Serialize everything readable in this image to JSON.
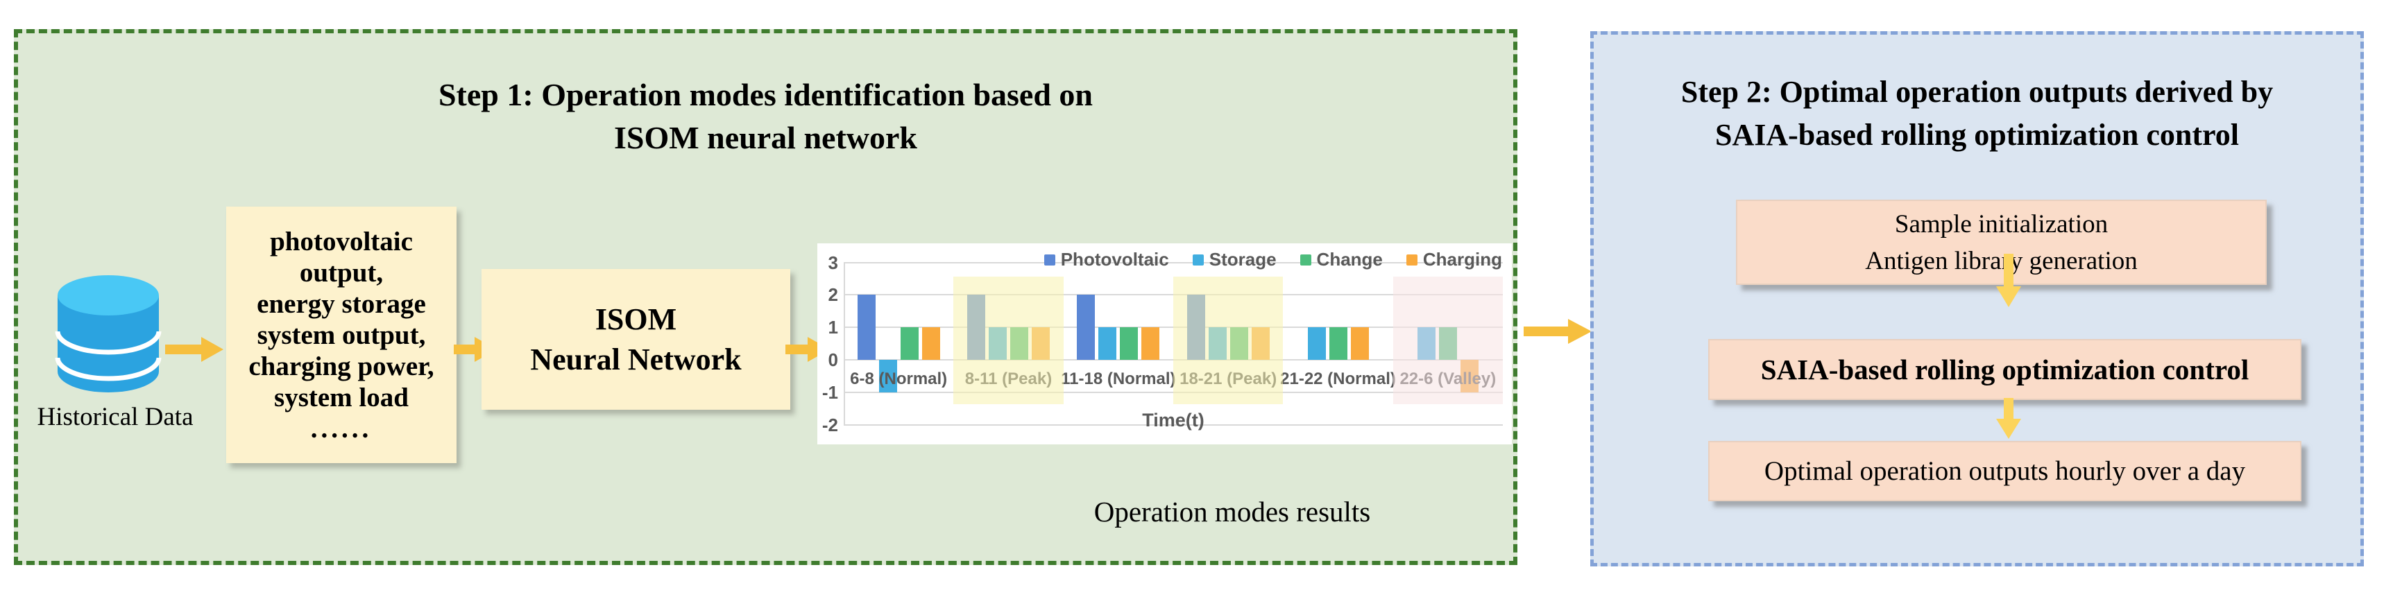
{
  "step1": {
    "title_line1": "Step 1: Operation modes identification based on",
    "title_line2": "ISOM neural network",
    "database_label": "Historical Data",
    "input_box_lines": [
      "photovoltaic",
      "output,",
      "energy storage",
      "system output,",
      "charging power,",
      "system load",
      "......"
    ],
    "isom_line1": "ISOM",
    "isom_line2": "Neural Network",
    "caption": "Operation modes results"
  },
  "step2": {
    "title_line1": "Step 2: Optimal operation outputs derived by",
    "title_line2": "SAIA-based rolling optimization control",
    "box1_line1": "Sample initialization",
    "box1_line2": "Antigen library generation",
    "box2_line1": "SAIA-based rolling optimization control",
    "box3_line1": "Optimal operation outputs hourly over a day"
  },
  "chart_data": {
    "type": "bar",
    "title": "",
    "xlabel": "Time(t)",
    "ylabel": "",
    "ylim": [
      -2,
      3
    ],
    "yticks": [
      3,
      2,
      1,
      0,
      -1,
      -2
    ],
    "grid": true,
    "legend_position": "top-right",
    "categories": [
      "6-8 (Normal)",
      "8-11 (Peak)",
      "11-18 (Normal)",
      "18-21 (Peak)",
      "21-22 (Normal)",
      "22-6 (Valley)"
    ],
    "series": [
      {
        "name": "Photovoltaic",
        "color": "#5b87d5",
        "values": [
          2,
          2,
          2,
          2,
          null,
          null
        ]
      },
      {
        "name": "Storage",
        "color": "#41aee0",
        "values": [
          -1,
          1,
          1,
          1,
          1,
          1
        ]
      },
      {
        "name": "Change",
        "color": "#4dbd7d",
        "values": [
          1,
          1,
          1,
          1,
          1,
          1
        ]
      },
      {
        "name": "Charging",
        "color": "#f9a93c",
        "values": [
          1,
          1,
          1,
          1,
          1,
          -1
        ]
      }
    ],
    "highlight_bands": [
      {
        "category_index": 1,
        "label": "peak",
        "color": "rgba(247,243,175,0.55)"
      },
      {
        "category_index": 3,
        "label": "peak",
        "color": "rgba(247,243,175,0.55)"
      },
      {
        "category_index": 5,
        "label": "valley",
        "color": "rgba(248,228,228,0.55)"
      }
    ]
  },
  "colors": {
    "step1_fill": "#dee9d6",
    "step1_border": "#3f7c2e",
    "step2_fill": "#dbe5f1",
    "step2_border": "#83a2d7",
    "cream_box": "#fdf2cd",
    "pink_box": "#fadcc9",
    "flow_arrow": "#f6bf3e",
    "down_arrow": "#fcd45c",
    "database_top": "#49c8f5",
    "database_body": "#2ba3e0"
  }
}
